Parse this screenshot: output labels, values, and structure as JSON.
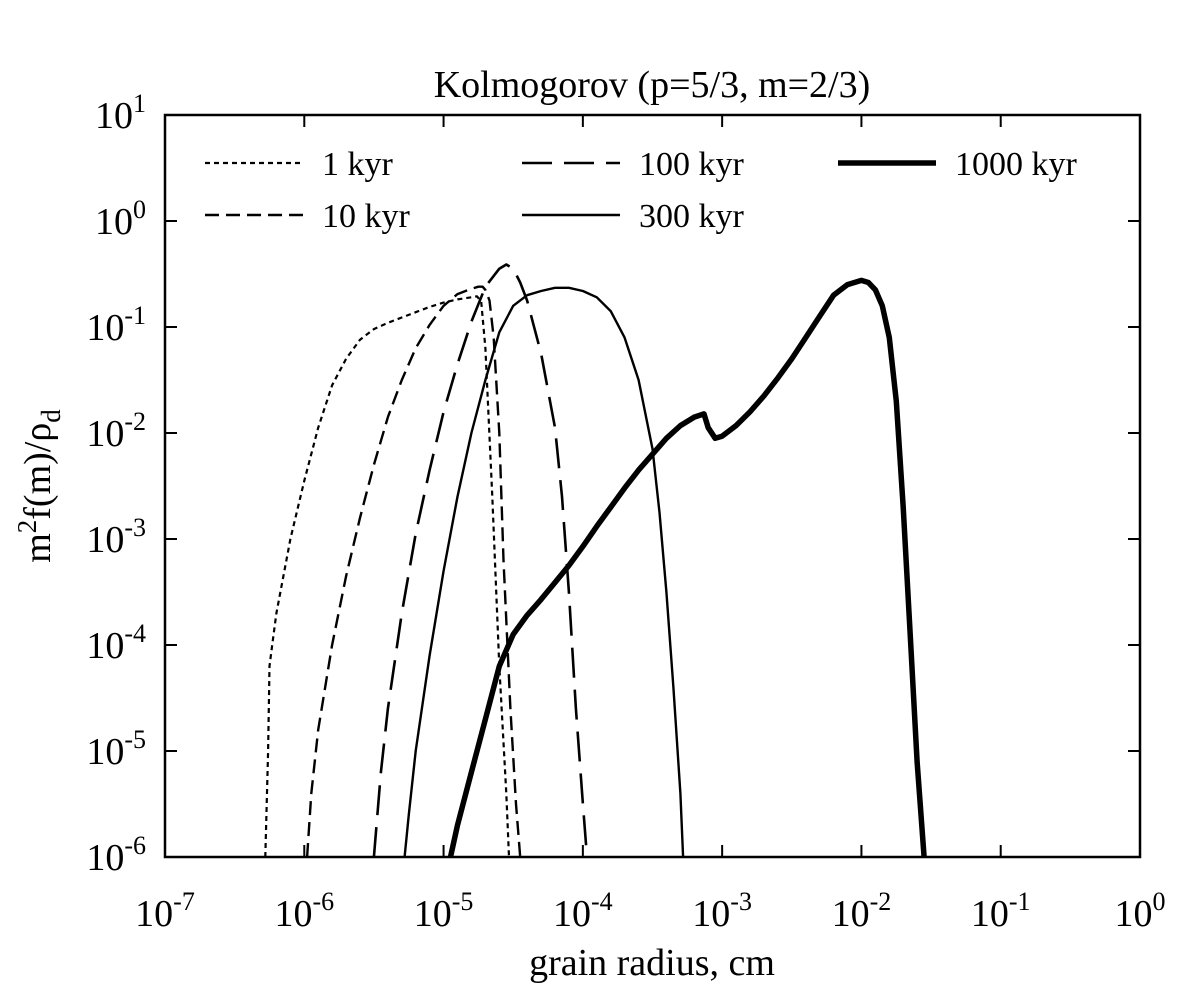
{
  "chart_data": {
    "type": "line",
    "title": "Kolmogorov (p=5/3, m=2/3)",
    "xlabel": "grain radius, cm",
    "ylabel": "m²f(m)/ρ_d",
    "ylabel_parts": {
      "base": "m",
      "sup": "2",
      "mid": "f(m)/ρ",
      "sub": "d"
    },
    "xscale": "log",
    "yscale": "log",
    "xlim": [
      1e-07,
      1
    ],
    "ylim": [
      1e-06,
      10
    ],
    "legend_position": "top",
    "x_ticks": [
      {
        "base": "10",
        "exp": "-7",
        "value": 1e-07
      },
      {
        "base": "10",
        "exp": "-6",
        "value": 1e-06
      },
      {
        "base": "10",
        "exp": "-5",
        "value": 1e-05
      },
      {
        "base": "10",
        "exp": "-4",
        "value": 0.0001
      },
      {
        "base": "10",
        "exp": "-3",
        "value": 0.001
      },
      {
        "base": "10",
        "exp": "-2",
        "value": 0.01
      },
      {
        "base": "10",
        "exp": "-1",
        "value": 0.1
      },
      {
        "base": "10",
        "exp": "0",
        "value": 1
      }
    ],
    "y_ticks": [
      {
        "base": "10",
        "exp": "-6",
        "value": 1e-06
      },
      {
        "base": "10",
        "exp": "-5",
        "value": 1e-05
      },
      {
        "base": "10",
        "exp": "-4",
        "value": 0.0001
      },
      {
        "base": "10",
        "exp": "-3",
        "value": 0.001
      },
      {
        "base": "10",
        "exp": "-2",
        "value": 0.01
      },
      {
        "base": "10",
        "exp": "-1",
        "value": 0.1
      },
      {
        "base": "10",
        "exp": "0",
        "value": 1
      },
      {
        "base": "10",
        "exp": "1",
        "value": 10
      }
    ],
    "series": [
      {
        "name": "1 kyr",
        "style": "dotted",
        "log_points": [
          [
            -6.28,
            -6
          ],
          [
            -6.26,
            -5.0
          ],
          [
            -6.25,
            -4.2
          ],
          [
            -6.23,
            -4.0
          ],
          [
            -6.2,
            -3.7
          ],
          [
            -6.1,
            -3.0
          ],
          [
            -6.0,
            -2.45
          ],
          [
            -5.9,
            -1.95
          ],
          [
            -5.8,
            -1.55
          ],
          [
            -5.7,
            -1.3
          ],
          [
            -5.6,
            -1.12
          ],
          [
            -5.5,
            -1.02
          ],
          [
            -5.4,
            -0.96
          ],
          [
            -5.3,
            -0.91
          ],
          [
            -5.2,
            -0.86
          ],
          [
            -5.1,
            -0.81
          ],
          [
            -5.0,
            -0.77
          ],
          [
            -4.9,
            -0.74
          ],
          [
            -4.8,
            -0.72
          ],
          [
            -4.76,
            -0.71
          ],
          [
            -4.73,
            -0.76
          ],
          [
            -4.7,
            -1.2
          ],
          [
            -4.65,
            -2.6
          ],
          [
            -4.6,
            -4.2
          ],
          [
            -4.55,
            -5.4
          ],
          [
            -4.53,
            -6
          ]
        ]
      },
      {
        "name": "10 kyr",
        "style": "dashed",
        "log_points": [
          [
            -5.98,
            -6
          ],
          [
            -5.95,
            -5.4
          ],
          [
            -5.9,
            -4.8
          ],
          [
            -5.8,
            -4.0
          ],
          [
            -5.7,
            -3.35
          ],
          [
            -5.6,
            -2.8
          ],
          [
            -5.5,
            -2.3
          ],
          [
            -5.4,
            -1.85
          ],
          [
            -5.3,
            -1.5
          ],
          [
            -5.2,
            -1.2
          ],
          [
            -5.1,
            -0.98
          ],
          [
            -5.0,
            -0.8
          ],
          [
            -4.9,
            -0.69
          ],
          [
            -4.8,
            -0.64
          ],
          [
            -4.75,
            -0.62
          ],
          [
            -4.72,
            -0.62
          ],
          [
            -4.7,
            -0.65
          ],
          [
            -4.67,
            -0.75
          ],
          [
            -4.64,
            -1.1
          ],
          [
            -4.6,
            -2.0
          ],
          [
            -4.57,
            -3.2
          ],
          [
            -4.52,
            -4.6
          ],
          [
            -4.48,
            -5.5
          ],
          [
            -4.45,
            -6
          ]
        ]
      },
      {
        "name": "100 kyr",
        "style": "long-dashed",
        "log_points": [
          [
            -5.5,
            -6
          ],
          [
            -5.45,
            -5.2
          ],
          [
            -5.4,
            -4.6
          ],
          [
            -5.3,
            -3.7
          ],
          [
            -5.2,
            -2.95
          ],
          [
            -5.1,
            -2.35
          ],
          [
            -5.0,
            -1.8
          ],
          [
            -4.9,
            -1.35
          ],
          [
            -4.8,
            -0.95
          ],
          [
            -4.7,
            -0.62
          ],
          [
            -4.6,
            -0.45
          ],
          [
            -4.55,
            -0.41
          ],
          [
            -4.5,
            -0.45
          ],
          [
            -4.45,
            -0.58
          ],
          [
            -4.4,
            -0.75
          ],
          [
            -4.3,
            -1.25
          ],
          [
            -4.2,
            -1.95
          ],
          [
            -4.15,
            -2.6
          ],
          [
            -4.1,
            -3.5
          ],
          [
            -4.05,
            -4.6
          ],
          [
            -4.0,
            -5.5
          ],
          [
            -3.97,
            -6
          ]
        ]
      },
      {
        "name": "300 kyr",
        "style": "solid",
        "log_points": [
          [
            -5.28,
            -6
          ],
          [
            -5.25,
            -5.6
          ],
          [
            -5.2,
            -5.0
          ],
          [
            -5.1,
            -4.1
          ],
          [
            -5.0,
            -3.3
          ],
          [
            -4.9,
            -2.6
          ],
          [
            -4.8,
            -2.0
          ],
          [
            -4.7,
            -1.5
          ],
          [
            -4.6,
            -1.05
          ],
          [
            -4.5,
            -0.8
          ],
          [
            -4.4,
            -0.7
          ],
          [
            -4.3,
            -0.66
          ],
          [
            -4.2,
            -0.63
          ],
          [
            -4.1,
            -0.63
          ],
          [
            -4.0,
            -0.66
          ],
          [
            -3.9,
            -0.72
          ],
          [
            -3.8,
            -0.85
          ],
          [
            -3.7,
            -1.1
          ],
          [
            -3.6,
            -1.5
          ],
          [
            -3.5,
            -2.15
          ],
          [
            -3.45,
            -2.75
          ],
          [
            -3.4,
            -3.5
          ],
          [
            -3.35,
            -4.4
          ],
          [
            -3.3,
            -5.4
          ],
          [
            -3.28,
            -6
          ]
        ]
      },
      {
        "name": "1000 kyr",
        "style": "thick-solid",
        "log_points": [
          [
            -4.95,
            -6
          ],
          [
            -4.9,
            -5.7
          ],
          [
            -4.8,
            -5.2
          ],
          [
            -4.7,
            -4.7
          ],
          [
            -4.6,
            -4.2
          ],
          [
            -4.5,
            -3.9
          ],
          [
            -4.4,
            -3.72
          ],
          [
            -4.3,
            -3.57
          ],
          [
            -4.2,
            -3.41
          ],
          [
            -4.1,
            -3.25
          ],
          [
            -4.0,
            -3.07
          ],
          [
            -3.9,
            -2.88
          ],
          [
            -3.8,
            -2.7
          ],
          [
            -3.7,
            -2.52
          ],
          [
            -3.6,
            -2.35
          ],
          [
            -3.5,
            -2.2
          ],
          [
            -3.4,
            -2.05
          ],
          [
            -3.3,
            -1.93
          ],
          [
            -3.2,
            -1.85
          ],
          [
            -3.13,
            -1.82
          ],
          [
            -3.1,
            -1.95
          ],
          [
            -3.05,
            -2.05
          ],
          [
            -3.0,
            -2.03
          ],
          [
            -2.9,
            -1.93
          ],
          [
            -2.8,
            -1.8
          ],
          [
            -2.7,
            -1.65
          ],
          [
            -2.6,
            -1.48
          ],
          [
            -2.5,
            -1.3
          ],
          [
            -2.4,
            -1.1
          ],
          [
            -2.3,
            -0.9
          ],
          [
            -2.2,
            -0.7
          ],
          [
            -2.1,
            -0.6
          ],
          [
            -2.0,
            -0.56
          ],
          [
            -1.95,
            -0.58
          ],
          [
            -1.9,
            -0.65
          ],
          [
            -1.85,
            -0.8
          ],
          [
            -1.8,
            -1.1
          ],
          [
            -1.75,
            -1.7
          ],
          [
            -1.7,
            -2.7
          ],
          [
            -1.65,
            -3.9
          ],
          [
            -1.6,
            -5.1
          ],
          [
            -1.55,
            -6
          ]
        ]
      }
    ]
  }
}
